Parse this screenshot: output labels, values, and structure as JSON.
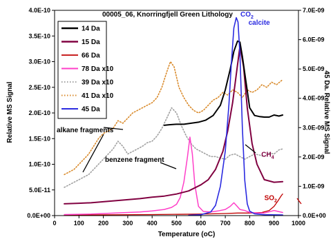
{
  "chart_data": {
    "type": "line",
    "title": "00005_06, Knorringfjell Green Lithology",
    "xlabel": "Temperature (oC)",
    "ylabel": "Relative MS Signal",
    "y2label": "45 Da. Relative MS Signal",
    "xlim": [
      0,
      1000
    ],
    "ylim": [
      0,
      4e-10
    ],
    "y2lim": [
      0,
      7e-09
    ],
    "grid": false,
    "legend_position": "top-left",
    "x_ticks": [
      "0",
      "100",
      "200",
      "300",
      "400",
      "500",
      "600",
      "700",
      "800",
      "900",
      "1000"
    ],
    "y_ticks": [
      "0.0E+00",
      "5.0E-11",
      "1.0E-10",
      "1.5E-10",
      "2.0E-10",
      "2.5E-10",
      "3.0E-10",
      "3.5E-10",
      "4.0E-10"
    ],
    "y2_ticks": [
      "0.0E+00",
      "1.0E-09",
      "2.0E-09",
      "3.0E-09",
      "4.0E-09",
      "5.0E-09",
      "6.0E-09",
      "7.0E-09"
    ],
    "series": [
      {
        "name": "14 Da",
        "color": "#000000",
        "style": "solid",
        "width": 2,
        "axis": "left",
        "x": [
          450,
          470,
          500,
          530,
          560,
          590,
          620,
          650,
          680,
          700,
          720,
          735,
          750,
          760,
          770,
          785,
          800,
          820,
          840,
          860,
          880,
          900,
          920,
          935
        ],
        "y": [
          1.76e-10,
          1.77e-10,
          1.78e-10,
          1.78e-10,
          1.8e-10,
          1.82e-10,
          1.86e-10,
          1.95e-10,
          2.15e-10,
          2.45e-10,
          2.85e-10,
          3.2e-10,
          3.4e-10,
          3.38e-10,
          3.1e-10,
          2.6e-10,
          2.1e-10,
          1.95e-10,
          1.93e-10,
          1.92e-10,
          1.92e-10,
          1.96e-10,
          1.94e-10,
          1.96e-10
        ]
      },
      {
        "name": "15 Da",
        "color": "#800040",
        "style": "solid",
        "width": 2,
        "axis": "left",
        "x": [
          40,
          100,
          150,
          200,
          250,
          300,
          350,
          400,
          450,
          500,
          550,
          600,
          630,
          660,
          690,
          710,
          730,
          745,
          760,
          775,
          790,
          810,
          830,
          860,
          900,
          935
        ],
        "y": [
          2.3e-11,
          2.4e-11,
          2.5e-11,
          2.7e-11,
          2.9e-11,
          3.1e-11,
          3.3e-11,
          3.6e-11,
          3.8e-11,
          4.2e-11,
          4.8e-11,
          6e-11,
          7e-11,
          9e-11,
          1.25e-10,
          1.65e-10,
          2.2e-10,
          2.75e-10,
          3.3e-10,
          2.9e-10,
          2.1e-10,
          1.4e-10,
          1e-10,
          7e-11,
          6.5e-11,
          6.6e-11
        ]
      },
      {
        "name": "66 Da",
        "color": "#c00000",
        "style": "solid",
        "width": 1.3,
        "axis": "left",
        "x": [
          40,
          200,
          400,
          600,
          700,
          750,
          800,
          850,
          880,
          900,
          915,
          930,
          935
        ],
        "y": [
          1e-12,
          1.5e-12,
          2e-12,
          3e-12,
          4e-12,
          5e-12,
          5e-12,
          6e-12,
          1e-11,
          1.8e-11,
          2.8e-11,
          3.9e-11,
          4.2e-11
        ]
      },
      {
        "name": "78 Da x10",
        "color": "#ff3ec8",
        "style": "solid",
        "width": 1.5,
        "axis": "left",
        "x": [
          40,
          100,
          150,
          200,
          250,
          300,
          350,
          400,
          450,
          480,
          500,
          515,
          530,
          545,
          555,
          565,
          575,
          590,
          610,
          640,
          670,
          700,
          720,
          735,
          745,
          760,
          780,
          800,
          830,
          860,
          900,
          935
        ],
        "y": [
          2e-12,
          2.5e-12,
          3e-12,
          4e-12,
          5e-12,
          6e-12,
          7e-12,
          9e-12,
          1.2e-11,
          1.6e-11,
          2.2e-11,
          3.5e-11,
          6.5e-11,
          1.15e-10,
          1.53e-10,
          1.2e-10,
          6e-11,
          1.8e-11,
          8e-12,
          7e-12,
          9e-12,
          1.2e-11,
          1.8e-11,
          2.5e-11,
          2e-11,
          1.2e-11,
          1e-11,
          6e-12,
          5e-12,
          5e-12,
          1e-11,
          6e-12
        ]
      },
      {
        "name": "39 Da x10",
        "color": "#a0a0a0",
        "style": "dot",
        "width": 1.6,
        "axis": "left",
        "x": [
          40,
          60,
          80,
          100,
          120,
          140,
          160,
          180,
          200,
          220,
          240,
          260,
          280,
          300,
          320,
          340,
          360,
          380,
          400,
          420,
          440,
          460,
          480,
          500,
          520,
          540,
          560,
          580,
          600,
          620,
          640,
          660,
          680,
          700,
          720,
          740,
          760,
          780,
          800,
          820,
          840,
          860,
          880,
          900,
          920,
          935
        ],
        "y": [
          5.5e-11,
          6e-11,
          6.5e-11,
          7e-11,
          7.5e-11,
          8e-11,
          9e-11,
          1e-10,
          1.1e-10,
          1.2e-10,
          1.3e-10,
          1.45e-10,
          1.35e-10,
          1.2e-10,
          1.25e-10,
          1.3e-10,
          1.35e-10,
          1.42e-10,
          1.45e-10,
          1.55e-10,
          1.7e-10,
          1.9e-10,
          2.1e-10,
          2e-10,
          1.75e-10,
          1.55e-10,
          1.4e-10,
          1.3e-10,
          1.25e-10,
          1.2e-10,
          1.15e-10,
          1.15e-10,
          1.12e-10,
          1.1e-10,
          1.18e-10,
          1.2e-10,
          1.15e-10,
          1.1e-10,
          1.15e-10,
          1.2e-10,
          1.18e-10,
          1.15e-10,
          1.22e-10,
          1.2e-10,
          1.28e-10,
          1.3e-10
        ]
      },
      {
        "name": "41 Da x10",
        "color": "#d98a2b",
        "style": "dot",
        "width": 1.6,
        "axis": "left",
        "x": [
          40,
          60,
          80,
          100,
          120,
          140,
          160,
          180,
          200,
          220,
          240,
          260,
          280,
          300,
          320,
          340,
          360,
          380,
          400,
          420,
          440,
          460,
          475,
          490,
          500,
          510,
          530,
          550,
          570,
          590,
          610,
          630,
          650,
          670,
          690,
          710,
          730,
          750,
          770,
          790,
          810,
          830,
          850,
          870,
          890,
          910,
          935
        ],
        "y": [
          8e-11,
          8.5e-11,
          9e-11,
          1e-10,
          1.1e-10,
          1.2e-10,
          1.35e-10,
          1.5e-10,
          1.6e-10,
          1.65e-10,
          1.7e-10,
          1.85e-10,
          1.8e-10,
          1.9e-10,
          2e-10,
          2.05e-10,
          2.1e-10,
          2.15e-10,
          2.2e-10,
          2.3e-10,
          2.5e-10,
          2.8e-10,
          3e-10,
          2.9e-10,
          2.7e-10,
          2.5e-10,
          2.3e-10,
          2.15e-10,
          2.05e-10,
          2e-10,
          2.05e-10,
          2.15e-10,
          2.25e-10,
          2.3e-10,
          2.4e-10,
          2.35e-10,
          2.45e-10,
          2.4e-10,
          2.3e-10,
          2.45e-10,
          2.4e-10,
          2.45e-10,
          2.55e-10,
          2.5e-10,
          2.6e-10,
          2.55e-10,
          2.65e-10
        ]
      },
      {
        "name": "45 Da",
        "color": "#2a2ae0",
        "style": "solid",
        "width": 1.6,
        "axis": "right",
        "x": [
          550,
          600,
          640,
          660,
          680,
          700,
          715,
          725,
          735,
          745,
          752,
          760,
          770,
          780,
          790,
          800,
          820,
          860,
          935
        ],
        "y": [
          1e-11,
          3e-11,
          1.2e-10,
          3.5e-10,
          1e-09,
          2.2e-09,
          3.8e-09,
          5.2e-09,
          6.4e-09,
          6.75e-09,
          6.6e-09,
          5.5e-09,
          3e-09,
          1.2e-09,
          4e-10,
          1.5e-10,
          6e-11,
          3e-11,
          2e-11
        ]
      }
    ],
    "annotations": {
      "co2": "CO",
      "co2_sub": "2",
      "calcite": "calcite",
      "ch4": "CH",
      "ch4_sub": "4",
      "so2": "SO",
      "so2_sub": "2",
      "alkane": "alkane fragments",
      "benzene": "benzene fragment"
    }
  }
}
